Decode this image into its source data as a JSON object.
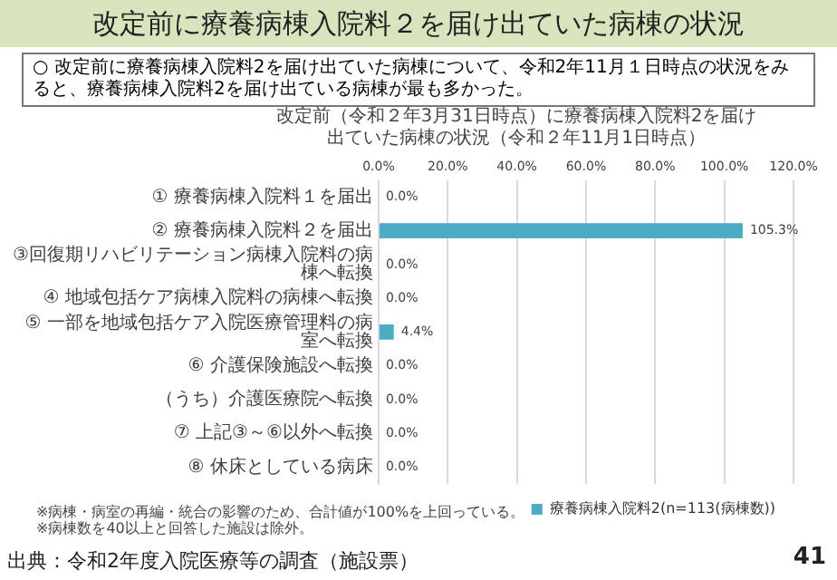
{
  "chart_data": {
    "type": "bar",
    "orientation": "horizontal",
    "title": "改定前に療養病棟入院料２を届け出ていた病棟の状況",
    "subtitle": "改定前（令和２年3月31日時点）に療養病棟入院料2を届け出ていた病棟の状況（令和２年11月1日時点）",
    "categories": [
      "① 療養病棟入院料１を届出",
      "② 療養病棟入院料２を届出",
      "③回復期リハビリテーション病棟入院料の病棟へ転換",
      "④ 地域包括ケア病棟入院料の病棟へ転換",
      "⑤ 一部を地域包括ケア入院医療管理料の病室へ転換",
      "⑥ 介護保険施設へ転換",
      "（うち）介護医療院へ転換",
      "⑦ 上記③～⑥以外へ転換",
      "⑧ 休床としている病床"
    ],
    "series": [
      {
        "name": "療養病棟入院料2(n=113(病棟数))",
        "color": "#4bacc6",
        "values": [
          0.0,
          105.3,
          0.0,
          0.0,
          4.4,
          0.0,
          0.0,
          0.0,
          0.0
        ],
        "value_labels": [
          "0.0%",
          "105.3%",
          "0.0%",
          "0.0%",
          "4.4%",
          "0.0%",
          "0.0%",
          "0.0%",
          "0.0%"
        ]
      }
    ],
    "xlim": [
      0,
      120
    ],
    "xticks": [
      {
        "value": 0,
        "label": "0.0%"
      },
      {
        "value": 20,
        "label": "20.0%"
      },
      {
        "value": 40,
        "label": "40.0%"
      },
      {
        "value": 60,
        "label": "60.0%"
      },
      {
        "value": 80,
        "label": "80.0%"
      },
      {
        "value": 100,
        "label": "100.0%"
      },
      {
        "value": 120,
        "label": "120.0%"
      }
    ],
    "grid": "x",
    "legend": "bottom",
    "annotations": [
      "○ 改定前に療養病棟入院料2を届け出ていた病棟について、令和2年11月１日時点の状況をみると、療養病棟入院料2を届け出ている病棟が最も多かった。",
      "※病棟・病室の再編・統合の影響のため、合計値が100%を上回っている。",
      "※病棟数を40以上と回答した施設は除外。",
      "出典：令和2年度入院医療等の調査（施設票）",
      "41"
    ]
  }
}
